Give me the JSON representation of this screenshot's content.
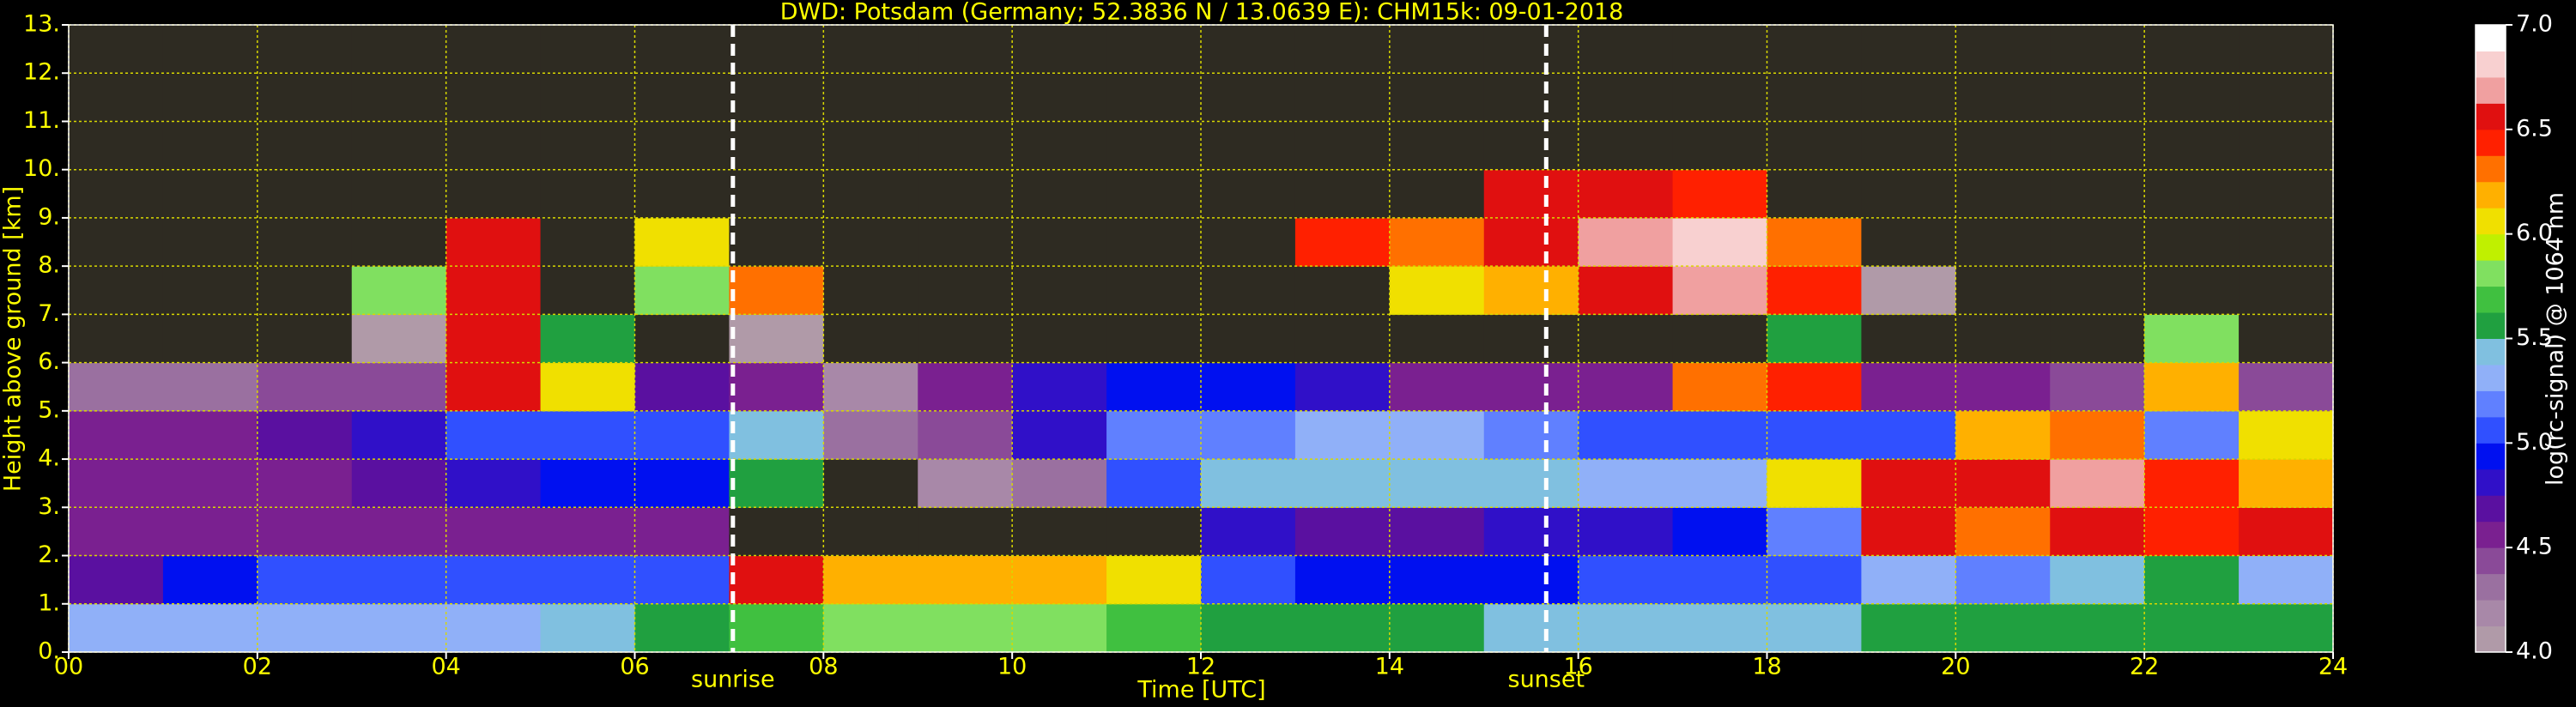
{
  "chart_data": {
    "type": "heatmap",
    "title": "DWD: Potsdam (Germany; 52.3836 N / 13.0639 E):    CHM15k: 09-01-2018",
    "x_label": "Time [UTC]",
    "y_label": "Height above ground [km]",
    "xlim": [
      0,
      24
    ],
    "ylim": [
      0,
      13
    ],
    "xticks": [
      {
        "value": 0,
        "label": "00"
      },
      {
        "value": 2,
        "label": "02"
      },
      {
        "value": 4,
        "label": "04"
      },
      {
        "value": 6,
        "label": "06"
      },
      {
        "value": 8,
        "label": "08"
      },
      {
        "value": 10,
        "label": "10"
      },
      {
        "value": 12,
        "label": "12"
      },
      {
        "value": 14,
        "label": "14"
      },
      {
        "value": 16,
        "label": "16"
      },
      {
        "value": 18,
        "label": "18"
      },
      {
        "value": 20,
        "label": "20"
      },
      {
        "value": 22,
        "label": "22"
      },
      {
        "value": 24,
        "label": "24"
      }
    ],
    "yticks": [
      {
        "value": 0,
        "label": "0."
      },
      {
        "value": 1,
        "label": "1."
      },
      {
        "value": 2,
        "label": "2."
      },
      {
        "value": 3,
        "label": "3."
      },
      {
        "value": 4,
        "label": "4."
      },
      {
        "value": 5,
        "label": "5."
      },
      {
        "value": 6,
        "label": "6."
      },
      {
        "value": 7,
        "label": "7."
      },
      {
        "value": 8,
        "label": "8."
      },
      {
        "value": 9,
        "label": "9."
      },
      {
        "value": 10,
        "label": "10."
      },
      {
        "value": 11,
        "label": "11."
      },
      {
        "value": 12,
        "label": "12."
      },
      {
        "value": 13,
        "label": "13."
      }
    ],
    "grid": true,
    "grid_color": "#d8d800",
    "x": [
      0.5,
      1.5,
      2.5,
      3.5,
      4.5,
      5.5,
      6.5,
      7.5,
      8.5,
      9.5,
      10.5,
      11.5,
      12.5,
      13.5,
      14.5,
      15.5,
      16.5,
      17.5,
      18.5,
      19.5,
      20.5,
      21.5,
      22.5,
      23.5
    ],
    "y": [
      0.5,
      1.5,
      2.5,
      3.5,
      4.5,
      5.5,
      6.5,
      7.5,
      8.5,
      9.5,
      10.5,
      11.5,
      12.5
    ],
    "z": [
      [
        5.3,
        5.3,
        5.3,
        5.3,
        5.3,
        5.4,
        5.5,
        5.7,
        5.8,
        5.8,
        5.8,
        5.7,
        5.6,
        5.5,
        5.5,
        5.4,
        5.4,
        5.4,
        5.4,
        5.5,
        5.5,
        5.5,
        5.5,
        5.5
      ],
      [
        4.7,
        4.9,
        5.0,
        5.0,
        5.0,
        5.0,
        5.1,
        6.5,
        6.2,
        6.2,
        6.2,
        6.1,
        5.0,
        4.9,
        4.9,
        4.9,
        5.0,
        5.0,
        5.1,
        5.3,
        5.2,
        5.4,
        5.6,
        5.3
      ],
      [
        4.5,
        4.5,
        4.5,
        4.5,
        4.6,
        4.6,
        4.6,
        3.9,
        3.9,
        3.9,
        3.9,
        3.9,
        4.8,
        4.7,
        4.7,
        4.8,
        4.8,
        4.9,
        5.2,
        6.6,
        6.3,
        6.6,
        6.4,
        6.5
      ],
      [
        4.5,
        4.5,
        4.6,
        4.7,
        4.8,
        4.9,
        4.9,
        5.6,
        3.9,
        4.2,
        4.3,
        5.1,
        5.4,
        5.4,
        5.4,
        5.4,
        5.3,
        5.3,
        6.0,
        6.6,
        6.5,
        6.7,
        6.4,
        6.2
      ],
      [
        4.6,
        4.6,
        4.7,
        4.8,
        5.0,
        5.1,
        5.1,
        5.4,
        4.3,
        4.4,
        4.8,
        5.2,
        5.2,
        5.3,
        5.3,
        5.2,
        5.1,
        5.0,
        5.0,
        5.1,
        6.2,
        6.3,
        5.2,
        6.0
      ],
      [
        4.3,
        4.3,
        4.4,
        4.4,
        6.5,
        6.0,
        4.7,
        4.6,
        4.2,
        4.5,
        4.8,
        4.9,
        4.9,
        4.8,
        4.6,
        4.5,
        4.6,
        6.3,
        6.4,
        4.5,
        4.5,
        4.4,
        6.2,
        4.4
      ],
      [
        3.9,
        3.9,
        3.9,
        4.0,
        6.6,
        5.6,
        3.9,
        4.0,
        3.9,
        3.9,
        3.9,
        3.9,
        3.9,
        3.9,
        3.9,
        3.9,
        3.9,
        3.9,
        5.6,
        3.9,
        3.9,
        3.9,
        5.8,
        3.9
      ],
      [
        3.9,
        3.9,
        3.9,
        5.8,
        6.6,
        3.9,
        5.8,
        6.3,
        3.9,
        3.9,
        3.9,
        3.9,
        3.9,
        3.9,
        6.0,
        6.2,
        6.6,
        6.7,
        6.4,
        4.0,
        3.9,
        3.9,
        3.9,
        3.9
      ],
      [
        3.9,
        3.9,
        3.9,
        3.9,
        6.5,
        3.9,
        6.0,
        3.9,
        3.9,
        3.9,
        3.9,
        3.9,
        3.9,
        6.4,
        6.3,
        6.5,
        6.7,
        6.8,
        6.3,
        3.9,
        3.9,
        3.9,
        3.9,
        3.9
      ],
      [
        3.9,
        3.9,
        3.9,
        3.9,
        3.9,
        3.9,
        3.9,
        3.9,
        3.9,
        3.9,
        3.9,
        3.9,
        3.9,
        3.9,
        3.9,
        6.5,
        6.6,
        6.4,
        3.9,
        3.9,
        3.9,
        3.9,
        3.9,
        3.9
      ],
      [
        3.9,
        3.9,
        3.9,
        3.9,
        3.9,
        3.9,
        3.9,
        3.9,
        3.9,
        3.9,
        3.9,
        3.9,
        3.9,
        3.9,
        3.9,
        3.9,
        3.9,
        3.9,
        3.9,
        3.9,
        3.9,
        3.9,
        3.9,
        3.9
      ],
      [
        3.9,
        3.9,
        3.9,
        3.9,
        3.9,
        3.9,
        3.9,
        3.9,
        3.9,
        3.9,
        3.9,
        3.9,
        3.9,
        3.9,
        3.9,
        3.9,
        3.9,
        3.9,
        3.9,
        3.9,
        3.9,
        3.9,
        3.9,
        3.9
      ],
      [
        3.9,
        3.9,
        3.9,
        3.9,
        3.9,
        3.9,
        3.9,
        3.9,
        3.9,
        3.9,
        3.9,
        3.9,
        3.9,
        3.9,
        3.9,
        3.9,
        3.9,
        3.9,
        3.9,
        3.9,
        3.9,
        3.9,
        3.9,
        3.9
      ]
    ],
    "annotations": [
      {
        "text": "sunrise",
        "x": 7.04
      },
      {
        "text": "sunset",
        "x": 15.66
      }
    ],
    "colorbar": {
      "label": "log(rc-signal) @ 1064 nm",
      "lim": [
        4,
        7
      ],
      "ticks": [
        {
          "value": 4,
          "label": "4.0"
        },
        {
          "value": 4.5,
          "label": "4.5"
        },
        {
          "value": 5,
          "label": "5.0"
        },
        {
          "value": 5.5,
          "label": "5.5"
        },
        {
          "value": 6,
          "label": "6.0"
        },
        {
          "value": 6.5,
          "label": "6.5"
        },
        {
          "value": 7,
          "label": "7.0"
        }
      ],
      "colors": [
        "#b09aa8",
        "#a888a8",
        "#9a70a0",
        "#8a4a98",
        "#7a2090",
        "#5a10a0",
        "#3010c8",
        "#0010f0",
        "#3050ff",
        "#6080ff",
        "#90b0f8",
        "#80c0e0",
        "#20a040",
        "#40c040",
        "#80e060",
        "#c0f000",
        "#f0e000",
        "#ffb000",
        "#ff7000",
        "#ff2000",
        "#e01010",
        "#f0a0a0",
        "#f8d0d0",
        "#ffffff"
      ],
      "under_color": "#2e2b22"
    }
  }
}
